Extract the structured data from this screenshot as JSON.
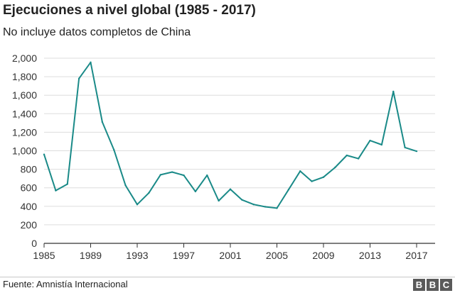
{
  "header": {
    "title": "Ejecuciones a nivel global (1985 - 2017)",
    "subtitle": "No incluye datos completos de China"
  },
  "footer": {
    "source": "Fuente: Amnistía Internacional",
    "logo": [
      "B",
      "B",
      "C"
    ]
  },
  "colors": {
    "line": "#1a8a88",
    "grid": "#dddddd",
    "axis": "#333333"
  },
  "chart_data": {
    "type": "line",
    "title": "Ejecuciones a nivel global (1985 - 2017)",
    "subtitle": "No incluye datos completos de China",
    "xlabel": "",
    "ylabel": "",
    "xlim": [
      1985,
      2017
    ],
    "ylim": [
      0,
      2000
    ],
    "x_ticks": [
      1985,
      1989,
      1993,
      1997,
      2001,
      2005,
      2009,
      2013,
      2017
    ],
    "y_ticks": [
      0,
      200,
      400,
      600,
      800,
      1000,
      1200,
      1400,
      1600,
      1800,
      2000
    ],
    "y_tick_labels": [
      "0",
      "200",
      "400",
      "600",
      "800",
      "1,000",
      "1,200",
      "1,400",
      "1,600",
      "1,800",
      "2,000"
    ],
    "grid": true,
    "series": [
      {
        "name": "Ejecuciones",
        "x": [
          1985,
          1986,
          1987,
          1988,
          1989,
          1990,
          1991,
          1992,
          1993,
          1994,
          1995,
          1996,
          1997,
          1998,
          1999,
          2000,
          2001,
          2002,
          2003,
          2004,
          2005,
          2006,
          2007,
          2008,
          2009,
          2010,
          2011,
          2012,
          2013,
          2014,
          2015,
          2016,
          2017
        ],
        "values": [
          960,
          570,
          640,
          1780,
          1955,
          1310,
          1010,
          625,
          420,
          545,
          740,
          770,
          735,
          560,
          735,
          460,
          585,
          470,
          420,
          395,
          380,
          580,
          780,
          670,
          715,
          820,
          950,
          915,
          1110,
          1065,
          1640,
          1035,
          995
        ]
      }
    ]
  }
}
